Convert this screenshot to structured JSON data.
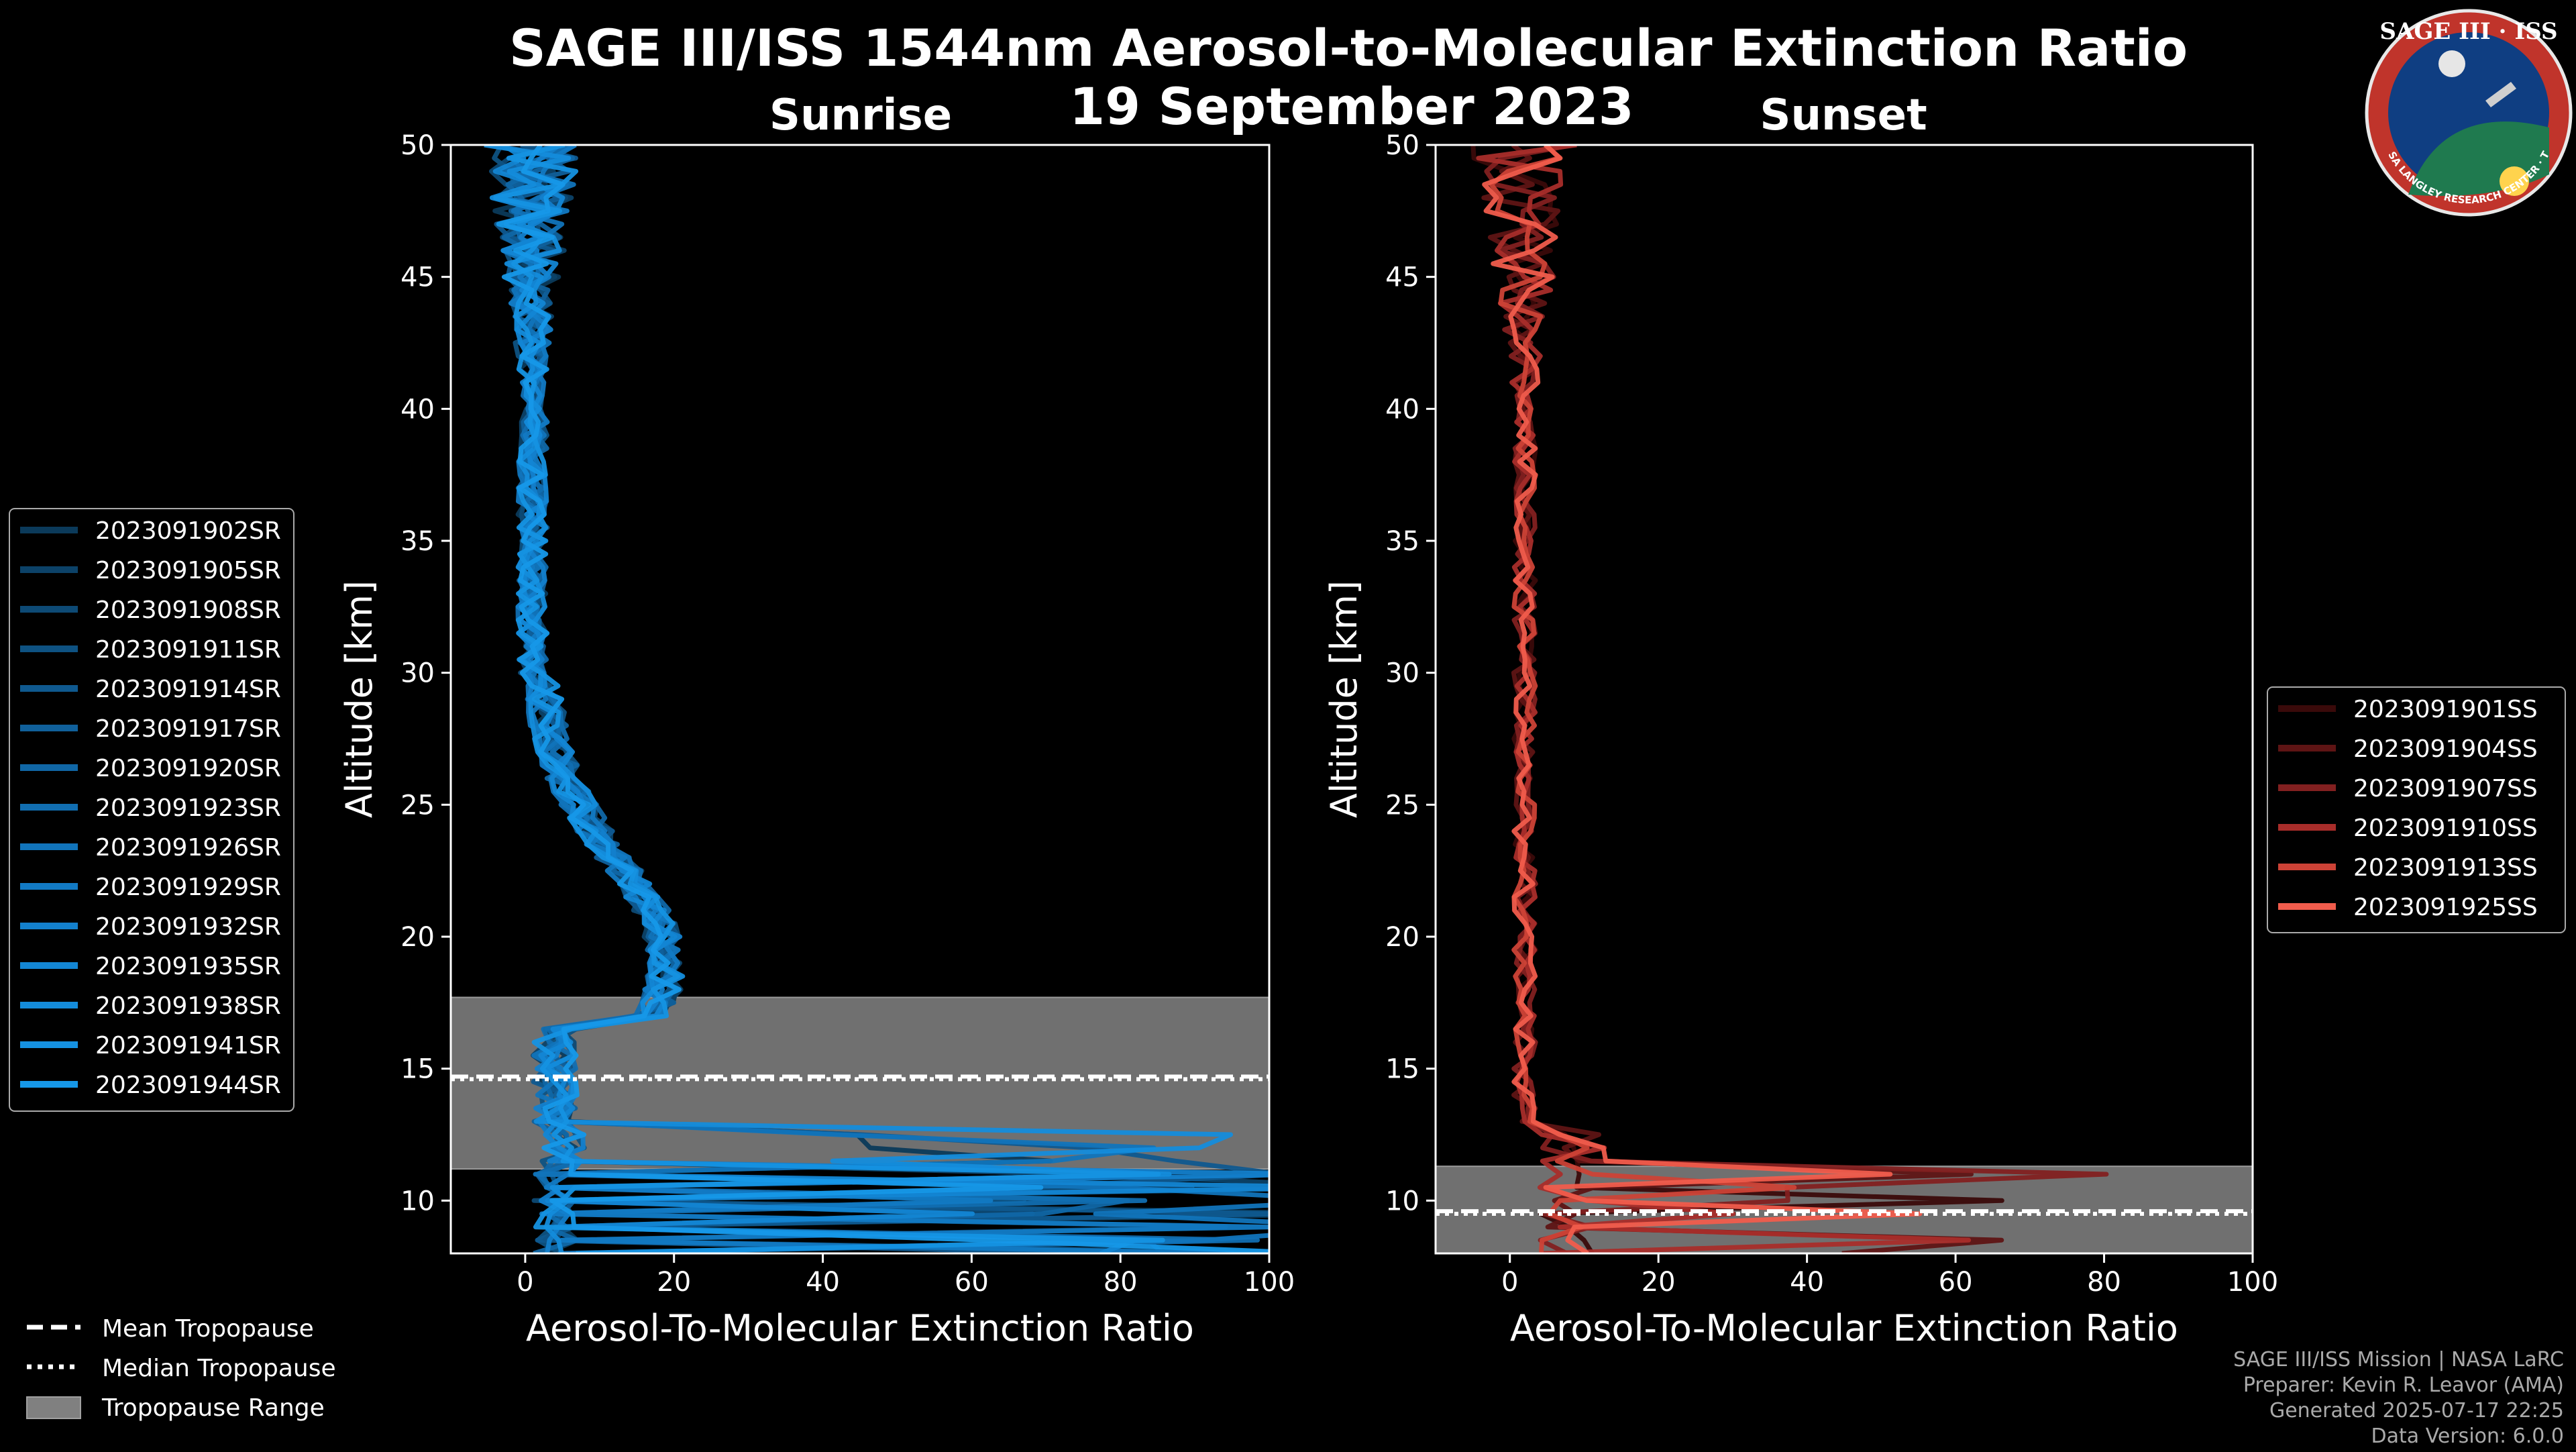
{
  "title": "SAGE III/ISS 1544nm Aerosol-to-Molecular Extinction Ratio",
  "date": "19 September 2023",
  "logo": {
    "text": "SAGE III · ISS",
    "ring_text": "BALL · NASA LANGLEY RESEARCH CENTER · TAS-I · ESA"
  },
  "footer": {
    "line1": "SAGE III/ISS Mission | NASA LaRC",
    "line2": "Preparer: Kevin R. Leavor (AMA)",
    "line3": "Generated 2025-07-17 22:25",
    "line4": "Data Version: 6.0.0"
  },
  "tropopause_legend": {
    "mean": "Mean Tropopause",
    "median": "Median Tropopause",
    "range": "Tropopause Range"
  },
  "chart_data": [
    {
      "type": "line",
      "title": "Sunrise",
      "xlabel": "Aerosol-To-Molecular Extinction Ratio",
      "ylabel": "Altitude [km]",
      "xlim": [
        -10,
        100
      ],
      "ylim": [
        8,
        50
      ],
      "xticks": [
        "0",
        "20",
        "40",
        "60",
        "80",
        "100"
      ],
      "yticks": [
        "10",
        "15",
        "20",
        "25",
        "30",
        "35",
        "40",
        "45",
        "50"
      ],
      "tropopause": {
        "mean": 14.7,
        "median": 14.6,
        "range": [
          11.2,
          17.7
        ]
      },
      "legend_position": "left",
      "series": [
        {
          "name": "2023091902SR",
          "color": "#0b3a5a"
        },
        {
          "name": "2023091905SR",
          "color": "#0c4268"
        },
        {
          "name": "2023091908SR",
          "color": "#0d4a75"
        },
        {
          "name": "2023091911SR",
          "color": "#0e5282"
        },
        {
          "name": "2023091914SR",
          "color": "#0f598f"
        },
        {
          "name": "2023091917SR",
          "color": "#10609b"
        },
        {
          "name": "2023091920SR",
          "color": "#1067a6"
        },
        {
          "name": "2023091923SR",
          "color": "#116eb1"
        },
        {
          "name": "2023091926SR",
          "color": "#1174bb"
        },
        {
          "name": "2023091929SR",
          "color": "#127ac4"
        },
        {
          "name": "2023091932SR",
          "color": "#1380cc"
        },
        {
          "name": "2023091935SR",
          "color": "#1386d4"
        },
        {
          "name": "2023091938SR",
          "color": "#148cdb"
        },
        {
          "name": "2023091941SR",
          "color": "#1592e2"
        },
        {
          "name": "2023091944SR",
          "color": "#1698e8"
        }
      ]
    },
    {
      "type": "line",
      "title": "Sunset",
      "xlabel": "Aerosol-To-Molecular Extinction Ratio",
      "ylabel": "Altitude [km]",
      "xlim": [
        -10,
        100
      ],
      "ylim": [
        8,
        50
      ],
      "xticks": [
        "0",
        "20",
        "40",
        "60",
        "80",
        "100"
      ],
      "yticks": [
        "10",
        "15",
        "20",
        "25",
        "30",
        "35",
        "40",
        "45",
        "50"
      ],
      "tropopause": {
        "mean": 9.6,
        "median": 9.5,
        "range": [
          8,
          11.3
        ]
      },
      "legend_position": "right",
      "series": [
        {
          "name": "2023091901SS",
          "color": "#3a0a0a"
        },
        {
          "name": "2023091904SS",
          "color": "#5e1414"
        },
        {
          "name": "2023091907SS",
          "color": "#822020"
        },
        {
          "name": "2023091910SS",
          "color": "#a82d2a"
        },
        {
          "name": "2023091913SS",
          "color": "#cc4236"
        },
        {
          "name": "2023091925SS",
          "color": "#f05c4c"
        }
      ]
    }
  ]
}
